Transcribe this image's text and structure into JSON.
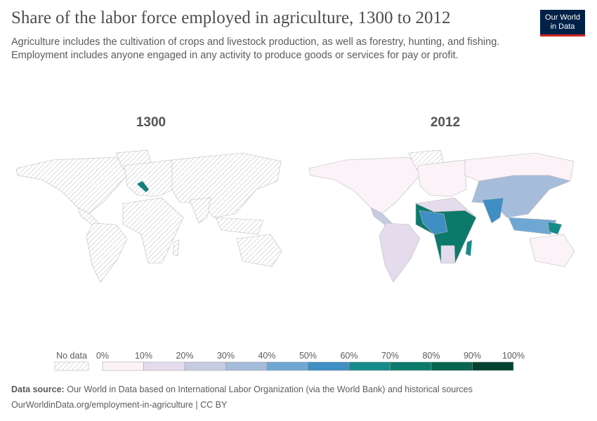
{
  "header": {
    "title": "Share of the labor force employed in agriculture, 1300 to 2012",
    "subtitle": [
      "Agriculture includes the cultivation of crops and livestock production, as well as forestry, hunting, and fishing.",
      "Employment includes anyone engaged in any activity to produce goods or services for pay or profit."
    ],
    "logo": [
      "Our World",
      "in Data"
    ]
  },
  "maps": [
    {
      "title": "1300"
    },
    {
      "title": "2012"
    }
  ],
  "legend": {
    "no_data": "No data",
    "ticks": [
      "0%",
      "10%",
      "20%",
      "30%",
      "40%",
      "50%",
      "60%",
      "70%",
      "80%",
      "90%",
      "100%"
    ],
    "colors": [
      "#fbf3f8",
      "#e4dced",
      "#c7cbe1",
      "#a6bcdb",
      "#6fa7d3",
      "#3f8ec4",
      "#168c8a",
      "#0c7a6a",
      "#07654f",
      "#034230"
    ]
  },
  "footer": {
    "source_label": "Data source:",
    "source": "Our World in Data based on International Labor Organization (via the World Bank) and historical sources",
    "url": "OurWorldinData.org/employment-in-agriculture | CC BY"
  }
}
